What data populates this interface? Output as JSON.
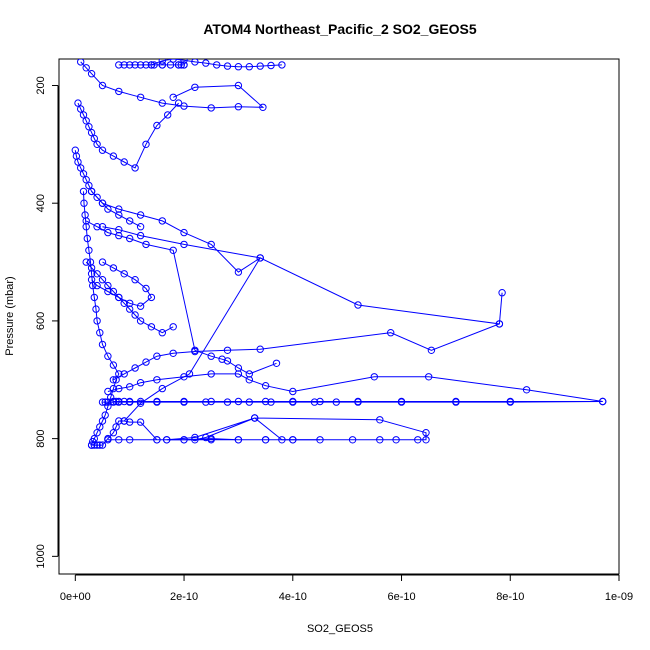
{
  "chart_data": {
    "type": "line",
    "title": "ATOM4 Northeast_Pacific_2 SO2_GEOS5",
    "xlabel": "SO2_GEOS5",
    "ylabel": "Pressure (mbar)",
    "xlim": [
      -3e-11,
      1e-09
    ],
    "ylim": [
      1030,
      155
    ],
    "y_reversed": true,
    "x_ticks": [
      {
        "value": 0,
        "label": "0e+00"
      },
      {
        "value": 2e-10,
        "label": "2e-10"
      },
      {
        "value": 4e-10,
        "label": "4e-10"
      },
      {
        "value": 6e-10,
        "label": "6e-10"
      },
      {
        "value": 8e-10,
        "label": "8e-10"
      },
      {
        "value": 1e-09,
        "label": "1e-09"
      }
    ],
    "y_ticks": [
      {
        "value": 200,
        "label": "200"
      },
      {
        "value": 400,
        "label": "400"
      },
      {
        "value": 600,
        "label": "600"
      },
      {
        "value": 800,
        "label": "800"
      },
      {
        "value": 1000,
        "label": "1000"
      }
    ],
    "color": "#0000ff",
    "marker": "open-circle",
    "series": [
      {
        "x": [
          3e-11,
          3.2e-11,
          3.5e-11,
          4e-11,
          4.5e-11,
          5e-11,
          5.5e-11,
          6e-11,
          6.5e-11,
          7e-11,
          7.5e-11,
          8e-11,
          7e-11,
          6e-11,
          5e-11,
          4.5e-11,
          4e-11,
          3.8e-11,
          3.5e-11,
          3.2e-11,
          3e-11,
          2.8e-11,
          2.5e-11,
          2.2e-11,
          2e-11,
          1.8e-11,
          1.6e-11,
          1.5e-11
        ],
        "y": [
          811,
          805,
          800,
          790,
          780,
          770,
          760,
          745,
          730,
          715,
          700,
          690,
          675,
          660,
          640,
          620,
          600,
          580,
          560,
          540,
          520,
          500,
          480,
          460,
          440,
          420,
          400,
          380
        ]
      },
      {
        "x": [
          3e-11,
          3.5e-11,
          4e-11,
          4.5e-11,
          5e-11,
          6e-11,
          7e-11,
          7.5e-11,
          8e-11,
          9e-11,
          1e-10,
          1.2e-10,
          1.5e-10,
          2e-10,
          2.5e-10,
          3e-10,
          3.5e-10,
          4e-10,
          4.5e-10,
          4e-10,
          3.5e-10,
          3e-10,
          2.5e-10,
          2e-10,
          1.5e-10,
          1e-10,
          8e-11,
          6e-11
        ],
        "y": [
          811,
          811,
          811,
          811,
          811,
          800,
          790,
          780,
          770,
          770,
          772,
          772,
          802,
          802,
          800,
          802,
          802,
          802,
          802,
          802,
          802,
          802,
          802,
          802,
          802,
          802,
          802,
          802
        ]
      },
      {
        "x": [
          1.68e-10,
          2.2e-10,
          2.4e-10,
          3.3e-10,
          3.8e-10,
          5.1e-10,
          5.6e-10,
          5.9e-10,
          6.3e-10,
          6.45e-10,
          6.45e-10,
          5.6e-10,
          3.3e-10,
          2.2e-10,
          1.68e-10
        ],
        "y": [
          802,
          802,
          798,
          765,
          802,
          802,
          802,
          802,
          802,
          802,
          790,
          768,
          765,
          798,
          802
        ]
      },
      {
        "x": [
          5e-11,
          5.5e-11,
          6e-11,
          7e-11,
          8e-11,
          1e-10,
          1.5e-10,
          2e-10,
          2.4e-10,
          2.8e-10,
          3.2e-10,
          3.6e-10,
          4e-10,
          4.4e-10,
          4.8e-10,
          5.2e-10,
          6e-10,
          7e-10,
          8e-10,
          9.7e-10,
          8e-10,
          7e-10,
          6e-10,
          5.2e-10,
          4.5e-10,
          4e-10,
          3.5e-10,
          3e-10,
          2.5e-10,
          2e-10,
          1.5e-10,
          1.2e-10,
          1e-10,
          9e-11,
          8e-11,
          7.5e-11,
          7e-11
        ],
        "y": [
          738,
          738,
          738,
          738,
          738,
          738,
          738,
          738,
          738,
          738,
          738,
          738,
          738,
          738,
          738,
          738,
          738,
          738,
          738,
          737,
          737,
          737,
          737,
          737,
          737,
          737,
          737,
          737,
          737,
          737,
          737,
          737,
          737,
          737,
          737,
          737,
          737
        ]
      },
      {
        "x": [
          6e-11,
          8e-11,
          1e-10,
          1.2e-10,
          1.5e-10,
          2e-10,
          2.5e-10,
          3e-10,
          3.2e-10,
          3.5e-10,
          4e-10,
          5.5e-10,
          6.5e-10,
          8.3e-10,
          9.7e-10
        ],
        "y": [
          720,
          715,
          712,
          705,
          700,
          695,
          690,
          690,
          700,
          710,
          720,
          695,
          695,
          717,
          737
        ]
      },
      {
        "x": [
          7e-11,
          9e-11,
          1.1e-10,
          1.3e-10,
          1.5e-10,
          1.8e-10,
          2.2e-10,
          2.8e-10,
          3.4e-10,
          5.8e-10,
          6.55e-10,
          7.8e-10,
          7.85e-10,
          7.8e-10,
          5.2e-10,
          3.4e-10,
          2.1e-10,
          1.6e-10,
          1.2e-10,
          9e-11
        ],
        "y": [
          700,
          690,
          680,
          670,
          660,
          655,
          652,
          650,
          648,
          620,
          650,
          605,
          552,
          605,
          573,
          493,
          690,
          715,
          740,
          770
        ]
      },
      {
        "x": [
          2e-11,
          4e-11,
          6e-11,
          8e-11,
          1e-10,
          1.3e-10,
          1.8e-10,
          2.2e-10,
          2.5e-10,
          2.7e-10,
          2.8e-10,
          3e-10,
          3.2e-10,
          3.7e-10
        ],
        "y": [
          430,
          440,
          450,
          455,
          460,
          470,
          480,
          650,
          660,
          665,
          668,
          680,
          690,
          672
        ]
      },
      {
        "x": [
          3e-11,
          5e-11,
          8e-11,
          1.2e-10,
          1.6e-10,
          2e-10,
          2.5e-10,
          3e-10,
          3.4e-10,
          2e-10,
          1.2e-10,
          8e-11,
          5e-11
        ],
        "y": [
          380,
          400,
          410,
          420,
          430,
          450,
          470,
          517,
          493,
          470,
          455,
          445,
          440
        ]
      },
      {
        "x": [
          1e-11,
          2e-11,
          3e-11,
          5e-11,
          8e-11,
          1.2e-10,
          1.6e-10,
          2e-10,
          2.5e-10,
          3e-10,
          3.45e-10,
          3e-10,
          2.2e-10,
          1.8e-10
        ],
        "y": [
          160,
          170,
          180,
          200,
          210,
          220,
          230,
          235,
          238,
          236,
          237,
          200,
          203,
          220
        ]
      },
      {
        "x": [
          5e-12,
          1e-11,
          1.5e-11,
          2e-11,
          2.5e-11,
          3e-11,
          3.5e-11,
          4e-11,
          5e-11,
          7e-11,
          9e-11,
          1.1e-10,
          1.3e-10,
          1.5e-10,
          1.7e-10,
          1.9e-10
        ],
        "y": [
          230,
          240,
          250,
          260,
          270,
          280,
          290,
          300,
          310,
          320,
          330,
          340,
          300,
          268,
          250,
          230
        ]
      },
      {
        "x": [
          0.0,
          2e-12,
          5e-12,
          1e-11,
          1.5e-11,
          2e-11,
          2.5e-11,
          3e-11,
          4e-11,
          5e-11,
          6e-11,
          8e-11,
          1e-10,
          1.2e-10
        ],
        "y": [
          310,
          320,
          330,
          340,
          350,
          360,
          370,
          380,
          390,
          400,
          410,
          420,
          430,
          440
        ]
      },
      {
        "x": [
          8e-11,
          9e-11,
          1e-10,
          1.1e-10,
          1.2e-10,
          1.3e-10,
          1.45e-10,
          1.6e-10,
          1.9e-10,
          2e-10,
          2e-10,
          1.95e-10,
          1.9e-10,
          1.75e-10,
          1.6e-10,
          1.4e-10
        ],
        "y": [
          165,
          165,
          165,
          165,
          165,
          165,
          165,
          165,
          165,
          165,
          165,
          165,
          165,
          165,
          165,
          165
        ]
      },
      {
        "x": [
          1.4e-10,
          1.6e-10,
          1.8e-10,
          2e-10,
          2.2e-10,
          2.4e-10,
          2.6e-10,
          2.8e-10,
          3e-10,
          3.2e-10,
          3.4e-10,
          3.6e-10,
          3.8e-10
        ],
        "y": [
          165,
          158,
          155,
          157,
          160,
          162,
          165,
          167,
          168,
          168,
          167,
          166,
          165
        ]
      },
      {
        "x": [
          2e-11,
          3e-11,
          4e-11,
          5e-11,
          6e-11,
          7e-11,
          8e-11,
          9e-11,
          1e-10,
          1.1e-10,
          1.2e-10,
          1.4e-10,
          1.6e-10,
          1.8e-10
        ],
        "y": [
          500,
          510,
          520,
          530,
          540,
          550,
          560,
          570,
          580,
          590,
          600,
          610,
          620,
          610
        ]
      },
      {
        "x": [
          3e-11,
          4e-11,
          6e-11,
          8e-11,
          1e-10,
          1.2e-10,
          1.4e-10,
          1.3e-10,
          1.1e-10,
          9e-11,
          7e-11,
          5e-11
        ],
        "y": [
          530,
          540,
          550,
          560,
          570,
          575,
          560,
          545,
          530,
          520,
          510,
          500
        ]
      }
    ]
  }
}
